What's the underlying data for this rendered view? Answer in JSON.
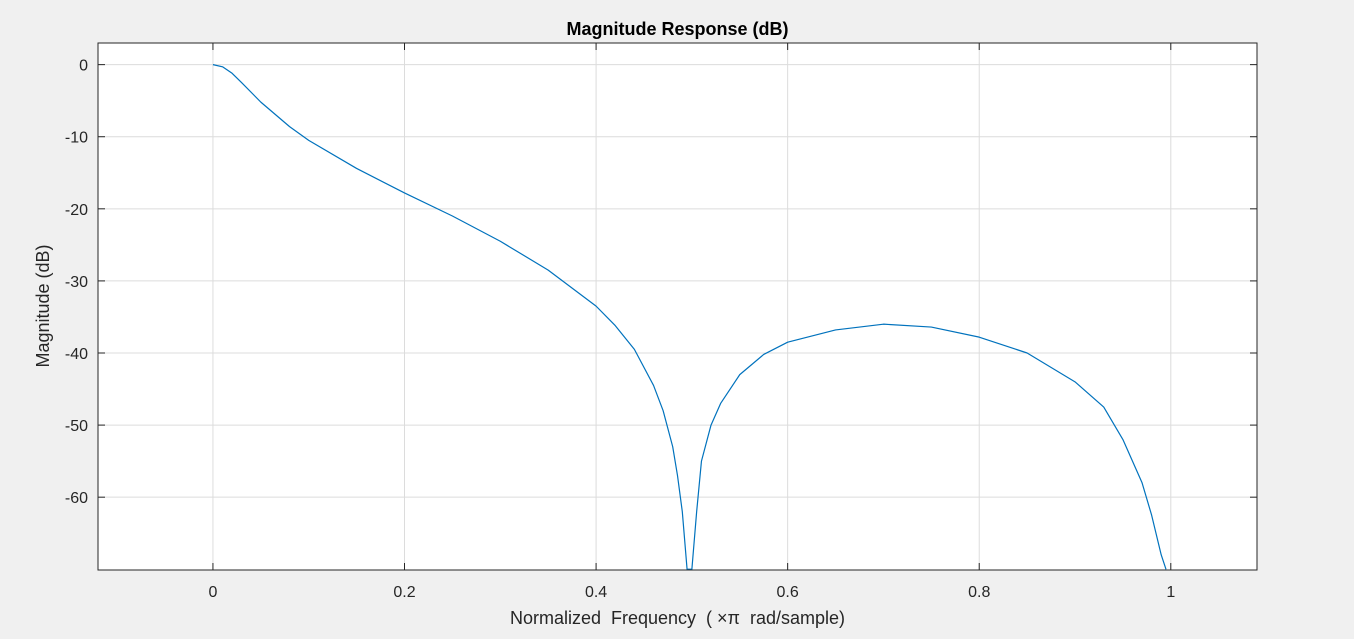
{
  "chart_data": {
    "type": "line",
    "title": "Magnitude Response (dB)",
    "xlabel": "Normalized  Frequency  ( ×π  rad/sample)",
    "ylabel": "Magnitude (dB)",
    "xlim": [
      -0.12,
      1.09
    ],
    "ylim": [
      -70.1,
      3
    ],
    "xticks": [
      0,
      0.2,
      0.4,
      0.6,
      0.8,
      1
    ],
    "xtick_labels": [
      "0",
      "0.2",
      "0.4",
      "0.6",
      "0.8",
      "1"
    ],
    "yticks": [
      0,
      -10,
      -20,
      -30,
      -40,
      -50,
      -60
    ],
    "ytick_labels": [
      "0",
      "-10",
      "-20",
      "-30",
      "-40",
      "-50",
      "-60"
    ],
    "grid": true,
    "background": "#ffffff",
    "figure_background": "#f0f0f0",
    "grid_color": "#dcdcdc",
    "axis_color": "#262626",
    "series": [
      {
        "color": "#0072bd",
        "x": [
          0,
          0.01,
          0.02,
          0.03,
          0.05,
          0.08,
          0.1,
          0.15,
          0.2,
          0.25,
          0.3,
          0.35,
          0.4,
          0.42,
          0.44,
          0.46,
          0.47,
          0.48,
          0.485,
          0.49,
          0.495,
          0.5,
          0.505,
          0.51,
          0.52,
          0.53,
          0.55,
          0.575,
          0.6,
          0.65,
          0.7,
          0.75,
          0.8,
          0.85,
          0.9,
          0.93,
          0.95,
          0.97,
          0.98,
          0.99,
          0.995
        ],
        "y": [
          0,
          -0.3,
          -1.2,
          -2.5,
          -5.2,
          -8.6,
          -10.5,
          -14.4,
          -17.8,
          -21,
          -24.5,
          -28.5,
          -33.5,
          -36.2,
          -39.5,
          -44.5,
          -48,
          -53,
          -57,
          -62,
          -70,
          -70,
          -62,
          -55,
          -50,
          -47,
          -43,
          -40.2,
          -38.5,
          -36.8,
          -36,
          -36.4,
          -37.8,
          -40,
          -44,
          -47.5,
          -52,
          -58,
          -62.5,
          -68,
          -70
        ]
      }
    ]
  }
}
